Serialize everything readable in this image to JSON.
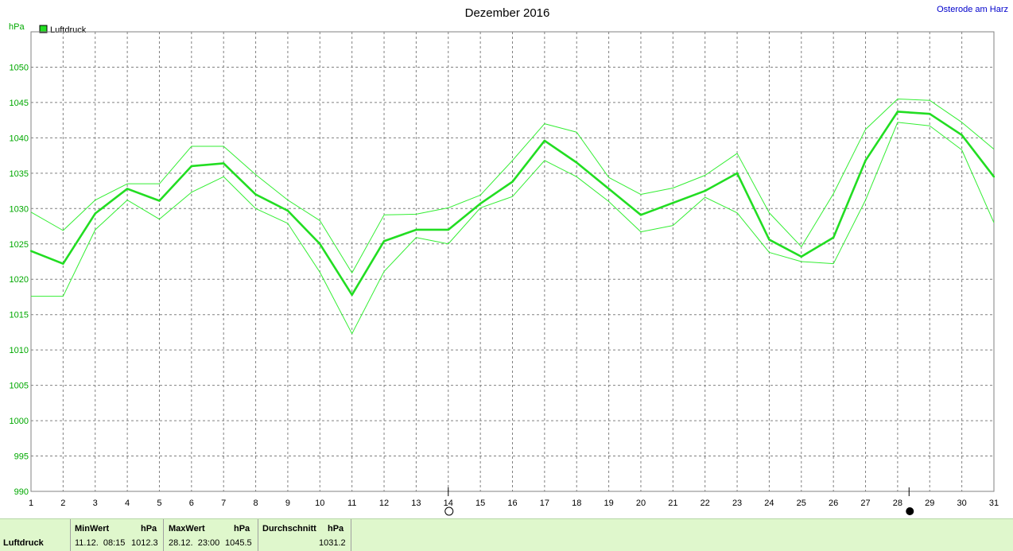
{
  "chart_data": {
    "type": "line",
    "title": "Dezember 2016",
    "station": "Osterode am Harz",
    "ylabel": "hPa",
    "ylim": [
      990,
      1055
    ],
    "yticks": [
      990,
      995,
      1000,
      1005,
      1010,
      1015,
      1020,
      1025,
      1030,
      1035,
      1040,
      1045,
      1050
    ],
    "x": [
      1,
      2,
      3,
      4,
      5,
      6,
      7,
      8,
      9,
      10,
      11,
      12,
      13,
      14,
      15,
      16,
      17,
      18,
      19,
      20,
      21,
      22,
      23,
      24,
      25,
      26,
      27,
      28,
      29,
      30,
      31
    ],
    "xlim": [
      1,
      31
    ],
    "grid": true,
    "legend": {
      "position": "top-left",
      "label": "Luftdruck",
      "color": "#22dd22"
    },
    "series": [
      {
        "name": "Luftdruck",
        "role": "mean",
        "values": [
          1024.0,
          1022.2,
          1029.3,
          1032.8,
          1031.1,
          1036.0,
          1036.4,
          1032.0,
          1029.7,
          1025.0,
          1017.8,
          1025.4,
          1027.0,
          1027.0,
          1030.7,
          1033.8,
          1039.6,
          1036.5,
          1032.8,
          1029.1,
          1030.8,
          1032.5,
          1035.0,
          1025.6,
          1023.2,
          1025.9,
          1036.8,
          1043.7,
          1043.4,
          1040.4,
          1034.5
        ]
      },
      {
        "role": "max",
        "values": [
          1029.5,
          1026.9,
          1031.2,
          1033.5,
          1033.5,
          1038.8,
          1038.8,
          1034.8,
          1031.2,
          1028.3,
          1020.9,
          1029.1,
          1029.2,
          1030.1,
          1031.9,
          1036.8,
          1042.0,
          1040.8,
          1034.4,
          1032.0,
          1032.9,
          1034.7,
          1037.8,
          1029.4,
          1024.6,
          1032.1,
          1041.2,
          1045.5,
          1045.3,
          1042.2,
          1038.4
        ]
      },
      {
        "role": "min",
        "values": [
          1017.6,
          1017.6,
          1027.0,
          1031.2,
          1028.5,
          1032.3,
          1034.5,
          1030.0,
          1027.9,
          1021.0,
          1012.3,
          1021.1,
          1025.9,
          1025.0,
          1030.1,
          1031.7,
          1036.8,
          1034.5,
          1031.0,
          1026.7,
          1027.6,
          1031.6,
          1029.4,
          1023.8,
          1022.5,
          1022.2,
          1031.2,
          1042.2,
          1041.7,
          1038.3,
          1028.0
        ]
      }
    ],
    "markers": [
      {
        "day": 14,
        "symbol": "full-moon-icon"
      },
      {
        "day": 29,
        "symbol": "new-moon-icon"
      }
    ]
  },
  "footer": {
    "row_label": "Luftdruck",
    "min": {
      "header": "MinWert",
      "unit": "hPa",
      "datetime": "11.12.  08:15",
      "value": "1012.3"
    },
    "max": {
      "header": "MaxWert",
      "unit": "hPa",
      "datetime": "28.12.  23:00",
      "value": "1045.5"
    },
    "avg": {
      "header": "Durchschnitt",
      "unit": "hPa",
      "value": "1031.2"
    }
  },
  "colors": {
    "mean": "#22dd22",
    "band": "#33ee33",
    "grid": "#808080",
    "accent": "#0000cc"
  }
}
